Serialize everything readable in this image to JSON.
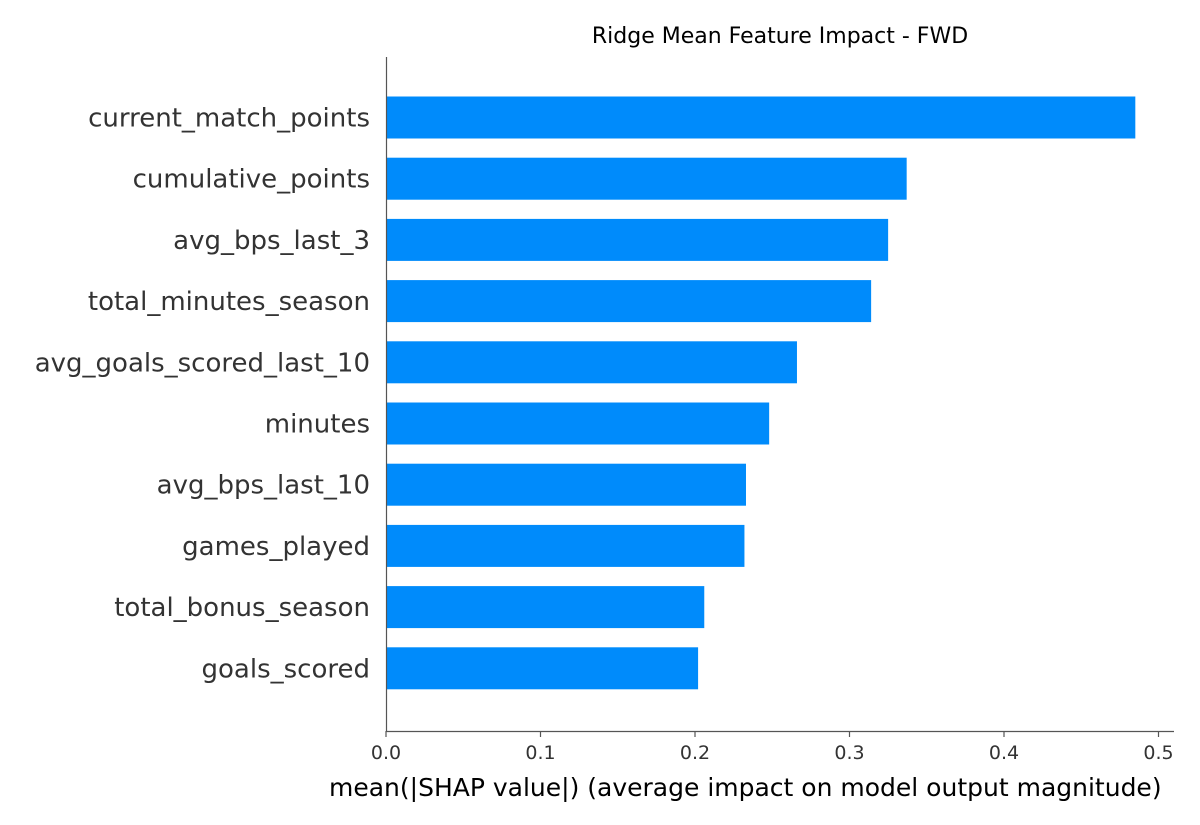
{
  "chart_data": {
    "type": "bar",
    "orientation": "horizontal",
    "title": "Ridge Mean Feature Impact - FWD",
    "xlabel": "mean(|SHAP value|) (average impact on model output magnitude)",
    "ylabel": "",
    "xlim": [
      0.0,
      0.507
    ],
    "xticks": [
      0.0,
      0.1,
      0.2,
      0.3,
      0.4,
      0.5
    ],
    "xtick_labels": [
      "0.0",
      "0.1",
      "0.2",
      "0.3",
      "0.4",
      "0.5"
    ],
    "grid": false,
    "legend": "none",
    "bar_color": "#008bfb",
    "axis_color": "#555555",
    "categories": [
      "current_match_points",
      "cumulative_points",
      "avg_bps_last_3",
      "total_minutes_season",
      "avg_goals_scored_last_10",
      "minutes",
      "avg_bps_last_10",
      "games_played",
      "total_bonus_season",
      "goals_scored"
    ],
    "values": [
      0.485,
      0.337,
      0.325,
      0.314,
      0.266,
      0.248,
      0.233,
      0.232,
      0.206,
      0.202
    ]
  }
}
